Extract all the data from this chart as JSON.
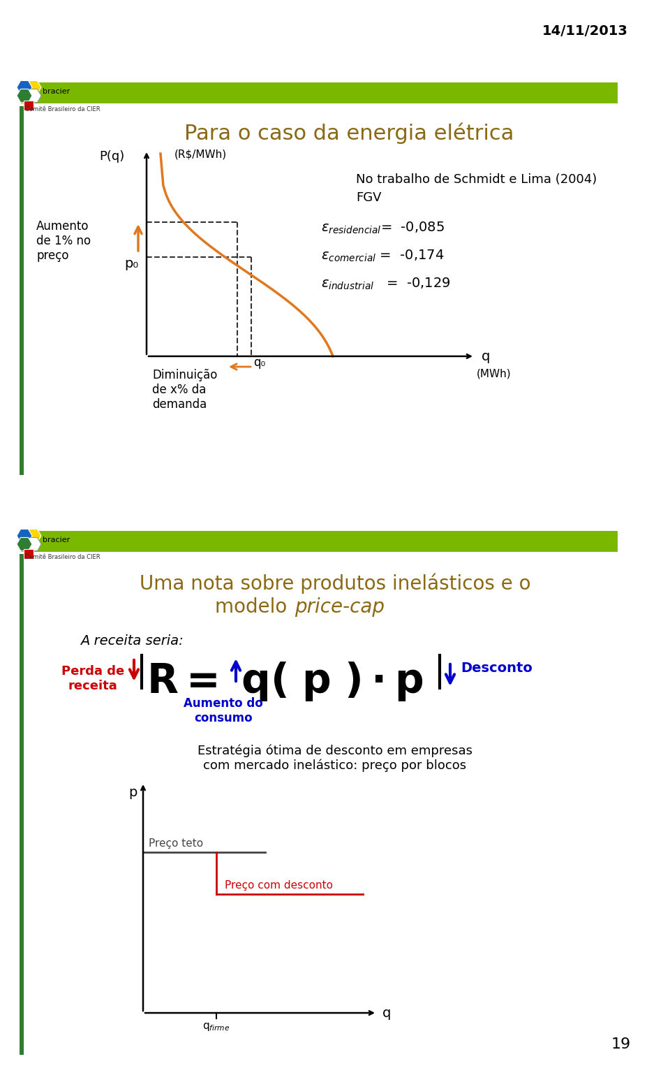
{
  "date_text": "14/11/2013",
  "slide1": {
    "header_color": "#7ab800",
    "header_text": "Para o caso da energia elétrica",
    "header_text_color": "#8B6914",
    "pq_label": "P(q)",
    "rs_mwh_label": "(R$/MWh)",
    "side_label_line1": "Aumento",
    "side_label_line2": "de 1% no",
    "side_label_line3": "preço",
    "p0_label": "p₀",
    "q0_label": "q₀",
    "diminuicao_line1": "Diminuição",
    "diminuicao_line2": "de x% da",
    "diminuicao_line3": "demanda",
    "q_axis_label": "q",
    "mwh_label": "(MWh)",
    "right_text_line1": "No trabalho de Schmidt e Lima (2004)",
    "right_text_line2": "FGV",
    "curve_color": "#E07820",
    "dashed_color": "#333333",
    "arrow_color": "#E07820"
  },
  "slide2": {
    "header_color": "#7ab800",
    "title_line1": "Uma nota sobre produtos inelásticos e o",
    "title_line2": "modelo ",
    "title_italic": "price-cap",
    "title_color": "#8B6914",
    "receita_label": "A receita seria:",
    "perda_label_line1": "Perda de",
    "perda_label_line2": "receita",
    "perda_color": "#CC0000",
    "aumento_label_line1": "Aumento do",
    "aumento_label_line2": "consumo",
    "aumento_color": "#0000CC",
    "desconto_label": "Desconto",
    "desconto_color": "#0000CC",
    "estrategia_line1": "Estratégia ótima de desconto em empresas",
    "estrategia_line2": "com mercado inelástico: preço por blocos",
    "preco_teto_label": "Preço teto",
    "preco_teto_color": "#444444",
    "preco_desconto_label": "Preço com desconto",
    "preco_desconto_color": "#CC0000",
    "p_axis_label": "p",
    "q_axis_label": "q"
  },
  "page_number": "19",
  "bg_color": "#ffffff",
  "left_bar_color": "#2E7D32"
}
